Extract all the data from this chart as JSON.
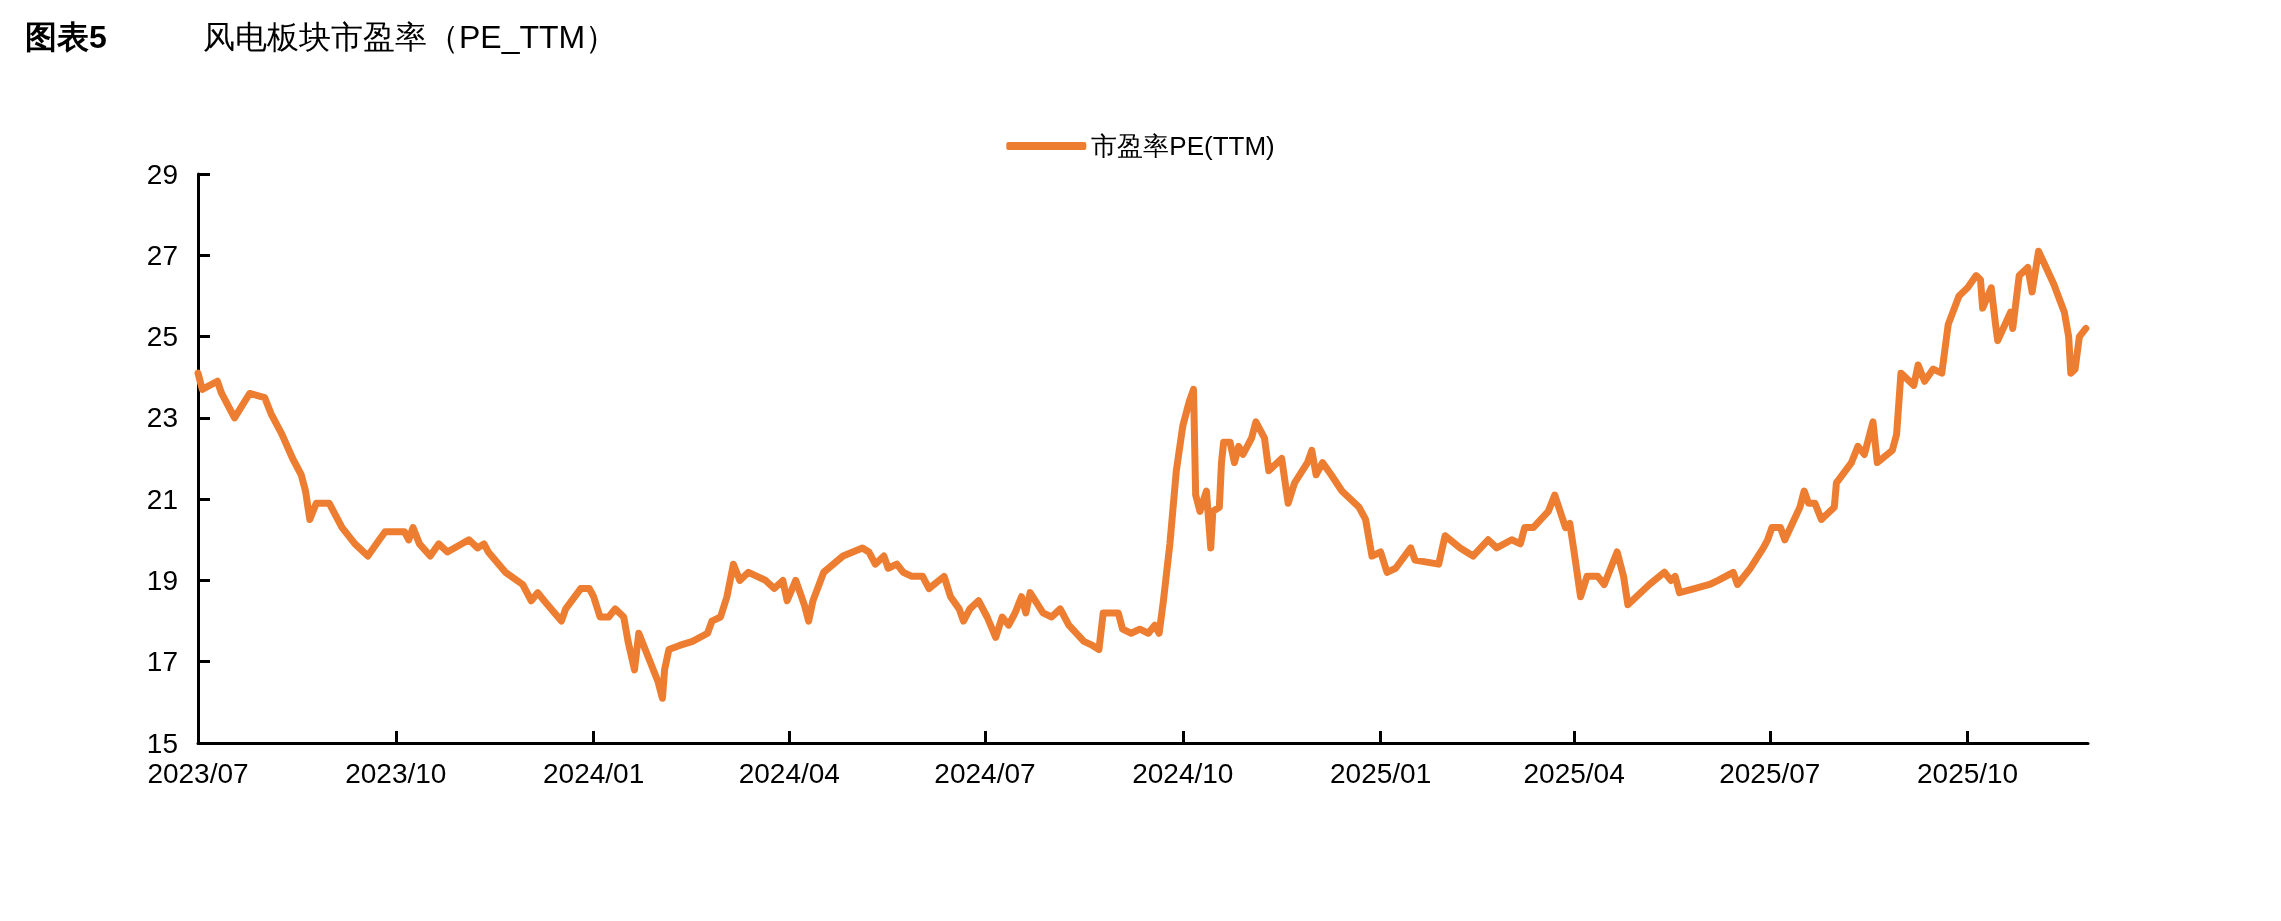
{
  "chart_data": {
    "type": "line",
    "title": "图表5",
    "subtitle": "风电板块市盈率（PE_TTM）",
    "x": [
      "2023-07-01",
      "2023-07-03",
      "2023-07-10",
      "2023-07-12",
      "2023-07-18",
      "2023-07-25",
      "2023-08-01",
      "2023-08-04",
      "2023-08-09",
      "2023-08-14",
      "2023-08-18",
      "2023-08-20",
      "2023-08-22",
      "2023-08-25",
      "2023-08-31",
      "2023-09-06",
      "2023-09-12",
      "2023-09-18",
      "2023-09-22",
      "2023-09-26",
      "2023-10-05",
      "2023-10-07",
      "2023-10-09",
      "2023-10-12",
      "2023-10-17",
      "2023-10-21",
      "2023-10-25",
      "2023-11-04",
      "2023-11-08",
      "2023-11-11",
      "2023-11-13",
      "2023-11-21",
      "2023-11-29",
      "2023-12-03",
      "2023-12-06",
      "2023-12-09",
      "2023-12-17",
      "2023-12-19",
      "2023-12-26",
      "2023-12-30",
      "2024-01-01",
      "2024-01-04",
      "2024-01-08",
      "2024-01-11",
      "2024-01-15",
      "2024-01-17",
      "2024-01-20",
      "2024-01-22",
      "2024-01-25",
      "2024-01-31",
      "2024-02-02",
      "2024-02-03",
      "2024-02-05",
      "2024-02-10",
      "2024-02-16",
      "2024-02-23",
      "2024-02-25",
      "2024-02-29",
      "2024-03-03",
      "2024-03-06",
      "2024-03-09",
      "2024-03-13",
      "2024-03-17",
      "2024-03-21",
      "2024-03-25",
      "2024-03-29",
      "2024-03-31",
      "2024-04-04",
      "2024-04-08",
      "2024-04-10",
      "2024-04-12",
      "2024-04-17",
      "2024-04-26",
      "2024-05-05",
      "2024-05-08",
      "2024-05-11",
      "2024-05-15",
      "2024-05-17",
      "2024-05-21",
      "2024-05-24",
      "2024-05-28",
      "2024-06-02",
      "2024-06-05",
      "2024-06-12",
      "2024-06-15",
      "2024-06-19",
      "2024-06-21",
      "2024-06-24",
      "2024-06-28",
      "2024-07-02",
      "2024-07-06",
      "2024-07-09",
      "2024-07-12",
      "2024-07-15",
      "2024-07-18",
      "2024-07-20",
      "2024-07-22",
      "2024-07-28",
      "2024-08-01",
      "2024-08-05",
      "2024-08-09",
      "2024-08-16",
      "2024-08-20",
      "2024-08-23",
      "2024-08-25",
      "2024-09-01",
      "2024-09-03",
      "2024-09-07",
      "2024-09-11",
      "2024-09-15",
      "2024-09-18",
      "2024-09-20",
      "2024-09-22",
      "2024-09-25",
      "2024-09-28",
      "2024-10-01",
      "2024-10-04",
      "2024-10-06",
      "2024-10-07",
      "2024-10-09",
      "2024-10-12",
      "2024-10-14",
      "2024-10-15",
      "2024-10-18",
      "2024-10-19",
      "2024-10-20",
      "2024-10-23",
      "2024-10-25",
      "2024-10-27",
      "2024-10-29",
      "2024-11-02",
      "2024-11-04",
      "2024-11-08",
      "2024-11-10",
      "2024-11-16",
      "2024-11-19",
      "2024-11-22",
      "2024-11-28",
      "2024-11-30",
      "2024-12-02",
      "2024-12-05",
      "2024-12-09",
      "2024-12-14",
      "2024-12-22",
      "2024-12-25",
      "2024-12-28",
      "2025-01-01",
      "2025-01-04",
      "2025-01-08",
      "2025-01-15",
      "2025-01-17",
      "2025-01-28",
      "2025-01-31",
      "2025-02-07",
      "2025-02-13",
      "2025-02-20",
      "2025-02-24",
      "2025-03-03",
      "2025-03-07",
      "2025-03-09",
      "2025-03-13",
      "2025-03-20",
      "2025-03-23",
      "2025-03-28",
      "2025-03-30",
      "2025-04-01",
      "2025-04-04",
      "2025-04-07",
      "2025-04-12",
      "2025-04-15",
      "2025-04-21",
      "2025-04-24",
      "2025-04-26",
      "2025-05-06",
      "2025-05-13",
      "2025-05-16",
      "2025-05-18",
      "2025-05-20",
      "2025-05-27",
      "2025-06-03",
      "2025-06-07",
      "2025-06-14",
      "2025-06-16",
      "2025-06-22",
      "2025-06-28",
      "2025-06-30",
      "2025-07-02",
      "2025-07-06",
      "2025-07-08",
      "2025-07-15",
      "2025-07-17",
      "2025-07-19",
      "2025-07-22",
      "2025-07-25",
      "2025-07-31",
      "2025-08-01",
      "2025-08-08",
      "2025-08-11",
      "2025-08-14",
      "2025-08-18",
      "2025-08-20",
      "2025-08-27",
      "2025-08-29",
      "2025-08-31",
      "2025-09-06",
      "2025-09-08",
      "2025-09-11",
      "2025-09-15",
      "2025-09-19",
      "2025-09-22",
      "2025-09-27",
      "2025-10-01",
      "2025-10-05",
      "2025-10-07",
      "2025-10-08",
      "2025-10-12",
      "2025-10-14",
      "2025-10-15",
      "2025-10-21",
      "2025-10-22",
      "2025-10-25",
      "2025-10-29",
      "2025-10-31",
      "2025-11-03",
      "2025-11-10",
      "2025-11-15",
      "2025-11-17",
      "2025-11-18",
      "2025-11-20",
      "2025-11-22",
      "2025-11-25"
    ],
    "series": [
      {
        "name": "市盈率PE(TTM)",
        "color": "#ed7d31",
        "values": [
          24.1,
          23.7,
          23.9,
          23.6,
          23.0,
          23.6,
          23.5,
          23.1,
          22.6,
          22.0,
          21.6,
          21.2,
          20.5,
          20.9,
          20.9,
          20.3,
          19.9,
          19.6,
          19.9,
          20.2,
          20.2,
          20.0,
          20.3,
          19.9,
          19.6,
          19.9,
          19.7,
          20.0,
          19.8,
          19.9,
          19.7,
          19.2,
          18.9,
          18.5,
          18.7,
          18.5,
          18.0,
          18.3,
          18.8,
          18.8,
          18.6,
          18.1,
          18.1,
          18.3,
          18.1,
          17.5,
          16.8,
          17.7,
          17.3,
          16.5,
          16.1,
          16.8,
          17.3,
          17.4,
          17.5,
          17.7,
          18.0,
          18.1,
          18.6,
          19.4,
          19.0,
          19.2,
          19.1,
          19.0,
          18.8,
          19.0,
          18.5,
          19.0,
          18.4,
          18.0,
          18.5,
          19.2,
          19.6,
          19.8,
          19.7,
          19.4,
          19.6,
          19.3,
          19.4,
          19.2,
          19.1,
          19.1,
          18.8,
          19.1,
          18.6,
          18.3,
          18.0,
          18.3,
          18.5,
          18.1,
          17.6,
          18.1,
          17.9,
          18.2,
          18.6,
          18.2,
          18.7,
          18.2,
          18.1,
          18.3,
          17.9,
          17.5,
          17.4,
          17.3,
          18.2,
          18.2,
          17.8,
          17.7,
          17.8,
          17.7,
          17.9,
          17.7,
          18.5,
          19.9,
          21.7,
          22.8,
          23.4,
          23.7,
          21.1,
          20.7,
          21.2,
          19.8,
          20.7,
          20.8,
          21.9,
          22.4,
          22.4,
          21.9,
          22.3,
          22.1,
          22.5,
          22.9,
          22.5,
          21.7,
          22.0,
          20.9,
          21.4,
          21.9,
          22.2,
          21.6,
          21.9,
          21.6,
          21.2,
          20.8,
          20.5,
          19.6,
          19.7,
          19.2,
          19.3,
          19.8,
          19.5,
          19.4,
          20.1,
          19.8,
          19.6,
          20.0,
          19.8,
          20.0,
          19.9,
          20.3,
          20.3,
          20.7,
          21.1,
          20.3,
          20.4,
          19.7,
          18.6,
          19.1,
          19.1,
          18.9,
          19.7,
          19.1,
          18.4,
          18.9,
          19.2,
          19.0,
          19.1,
          18.7,
          18.8,
          18.9,
          19.0,
          19.2,
          18.9,
          19.3,
          19.8,
          20.0,
          20.3,
          20.3,
          20.0,
          20.8,
          21.2,
          20.9,
          20.9,
          20.5,
          20.8,
          21.4,
          21.9,
          22.3,
          22.1,
          22.9,
          21.9,
          22.2,
          22.6,
          24.1,
          23.8,
          24.3,
          23.9,
          24.2,
          24.1,
          25.3,
          26.0,
          26.2,
          26.5,
          26.4,
          25.7,
          26.2,
          25.3,
          24.9,
          25.6,
          25.2,
          26.5,
          26.7,
          26.1,
          27.1,
          26.3,
          25.6,
          25.0,
          24.1,
          24.2,
          25.0,
          25.2
        ]
      }
    ],
    "xlim": [
      "2023-07-01",
      "2025-11-26"
    ],
    "xticks": [
      {
        "value": "2023-07-01",
        "label": "2023/07"
      },
      {
        "value": "2023-10-01",
        "label": "2023/10"
      },
      {
        "value": "2024-01-01",
        "label": "2024/01"
      },
      {
        "value": "2024-04-01",
        "label": "2024/04"
      },
      {
        "value": "2024-07-01",
        "label": "2024/07"
      },
      {
        "value": "2024-10-01",
        "label": "2024/10"
      },
      {
        "value": "2025-01-01",
        "label": "2025/01"
      },
      {
        "value": "2025-04-01",
        "label": "2025/04"
      },
      {
        "value": "2025-07-01",
        "label": "2025/07"
      },
      {
        "value": "2025-10-01",
        "label": "2025/10"
      }
    ],
    "ylim": [
      15,
      29
    ],
    "yticks": [
      15,
      17,
      19,
      21,
      23,
      25,
      27,
      29
    ],
    "legend": "top",
    "grid": false,
    "marker": "none",
    "line_style": "solid"
  }
}
